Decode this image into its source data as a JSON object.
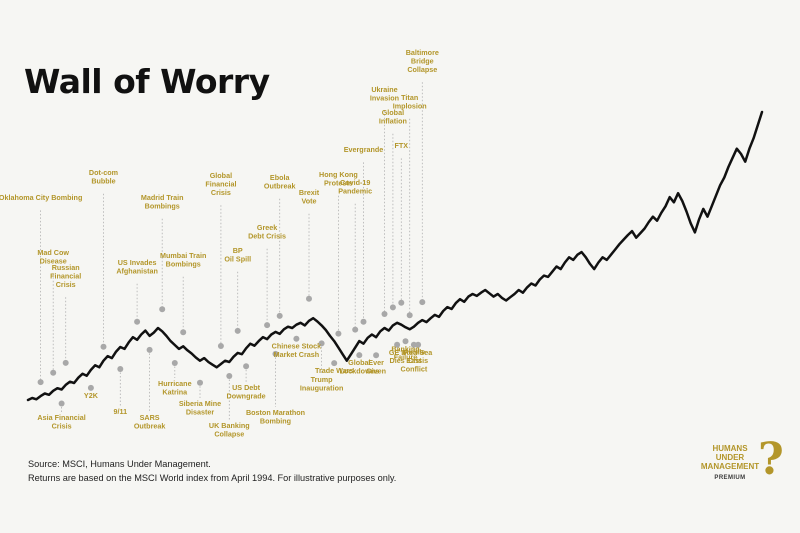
{
  "chart_data": {
    "type": "line",
    "title": "Wall of Worry",
    "xlabel": "",
    "ylabel": "",
    "grid": false,
    "series": [
      {
        "values": [
          100,
          103,
          101,
          106,
          110,
          108,
          114,
          118,
          116,
          123,
          128,
          126,
          134,
          140,
          137,
          146,
          153,
          150,
          160,
          167,
          164,
          174,
          181,
          178,
          188,
          196,
          192,
          200,
          206,
          198,
          203,
          210,
          205,
          198,
          190,
          184,
          178,
          182,
          176,
          171,
          165,
          160,
          164,
          158,
          154,
          150,
          155,
          160,
          158,
          166,
          172,
          170,
          179,
          186,
          183,
          190,
          196,
          193,
          200,
          204,
          201,
          208,
          212,
          210,
          215,
          218,
          214,
          221,
          225,
          220,
          214,
          207,
          198,
          190,
          180,
          170,
          160,
          170,
          180,
          190,
          186,
          195,
          200,
          196,
          205,
          210,
          206,
          214,
          218,
          215,
          211,
          208,
          212,
          218,
          222,
          219,
          225,
          230,
          227,
          236,
          242,
          239,
          248,
          254,
          250,
          258,
          262,
          259,
          264,
          268,
          263,
          258,
          262,
          256,
          252,
          257,
          262,
          268,
          264,
          272,
          278,
          275,
          284,
          290,
          288,
          296,
          304,
          300,
          310,
          318,
          314,
          322,
          326,
          318,
          308,
          300,
          310,
          318,
          314,
          322,
          330,
          338,
          345,
          352,
          358,
          348,
          355,
          362,
          372,
          380,
          374,
          386,
          396,
          410,
          402,
          416,
          404,
          388,
          370,
          356,
          376,
          392,
          380,
          396,
          412,
          428,
          440,
          456,
          470,
          484,
          476,
          464,
          484,
          500,
          520,
          540
        ],
        "line_color": "#111111"
      }
    ],
    "annotations": {
      "above": [
        {
          "lines": [
            "Oklahoma City Bombing"
          ],
          "i": 3
        },
        {
          "lines": [
            "Mad Cow",
            "Disease"
          ],
          "i": 6
        },
        {
          "lines": [
            "Russian",
            "Financial",
            "Crisis"
          ],
          "i": 9
        },
        {
          "lines": [
            "Dot-com",
            "Bubble"
          ],
          "i": 18
        },
        {
          "lines": [
            "US Invades",
            "Afghanistan"
          ],
          "i": 26
        },
        {
          "lines": [
            "Madrid Train",
            "Bombings"
          ],
          "i": 32
        },
        {
          "lines": [
            "Mumbai Train",
            "Bombings"
          ],
          "i": 37
        },
        {
          "lines": [
            "Global",
            "Financial",
            "Crisis"
          ],
          "i": 46
        },
        {
          "lines": [
            "BP",
            "Oil Spill"
          ],
          "i": 50
        },
        {
          "lines": [
            "Greek",
            "Debt Crisis"
          ],
          "i": 57
        },
        {
          "lines": [
            "Ebola",
            "Outbreak"
          ],
          "i": 60
        },
        {
          "lines": [
            "Brexit",
            "Vote"
          ],
          "i": 67
        },
        {
          "lines": [
            "Hong Kong",
            "Protests"
          ],
          "i": 74
        },
        {
          "lines": [
            "Covid-19",
            "Pandemic"
          ],
          "i": 78
        },
        {
          "lines": [
            "Evergrande"
          ],
          "i": 80
        },
        {
          "lines": [
            "Ukraine",
            "Invasion"
          ],
          "i": 85
        },
        {
          "lines": [
            "Global",
            "Inflation"
          ],
          "i": 87
        },
        {
          "lines": [
            "FTX"
          ],
          "i": 89
        },
        {
          "lines": [
            "Titan",
            "Implosion"
          ],
          "i": 91
        },
        {
          "lines": [
            "Baltimore",
            "Bridge",
            "Collapse"
          ],
          "i": 94
        }
      ],
      "below": [
        {
          "lines": [
            "Asia Financial",
            "Crisis"
          ],
          "i": 8
        },
        {
          "lines": [
            "Y2K"
          ],
          "i": 15
        },
        {
          "lines": [
            "9/11"
          ],
          "i": 22
        },
        {
          "lines": [
            "SARS",
            "Outbreak"
          ],
          "i": 29
        },
        {
          "lines": [
            "Hurricane",
            "Katrina"
          ],
          "i": 35
        },
        {
          "lines": [
            "Siberia Mine",
            "Disaster"
          ],
          "i": 41
        },
        {
          "lines": [
            "UK Banking",
            "Collapse"
          ],
          "i": 48
        },
        {
          "lines": [
            "US Debt",
            "Downgrade"
          ],
          "i": 52
        },
        {
          "lines": [
            "Boston Marathon",
            "Bombing"
          ],
          "i": 59
        },
        {
          "lines": [
            "Chinese Stock",
            "Market Crash"
          ],
          "i": 64
        },
        {
          "lines": [
            "Trump",
            "Inauguration"
          ],
          "i": 70
        },
        {
          "lines": [
            "Trade Wars"
          ],
          "i": 73
        },
        {
          "lines": [
            "Global",
            "Lockdowns"
          ],
          "i": 79
        },
        {
          "lines": [
            "Ever",
            "Given"
          ],
          "i": 83
        },
        {
          "lines": [
            "GE II",
            "Dies"
          ],
          "i": 88
        },
        {
          "lines": [
            "Banking",
            "Failure"
          ],
          "i": 90
        },
        {
          "lines": [
            "Middle",
            "East",
            "Conflict"
          ],
          "i": 92
        },
        {
          "lines": [
            "Red Sea",
            "Crisis"
          ],
          "i": 93
        }
      ]
    }
  },
  "footnote": {
    "source": "Source: MSCI, Humans Under Management.",
    "note": "Returns are based on the MSCI World index from April 1994. For illustrative purposes only."
  },
  "brand": {
    "line1": "HUMANS",
    "line2": "UNDER",
    "line3": "MANAGEMENT",
    "premium": "PREMIUM",
    "mark": "?"
  },
  "colors": {
    "label": "#b3962a",
    "connector": "#b0b0b0",
    "dot": "#a8a8a8",
    "line": "#111111",
    "background": "#f6f6f3"
  }
}
